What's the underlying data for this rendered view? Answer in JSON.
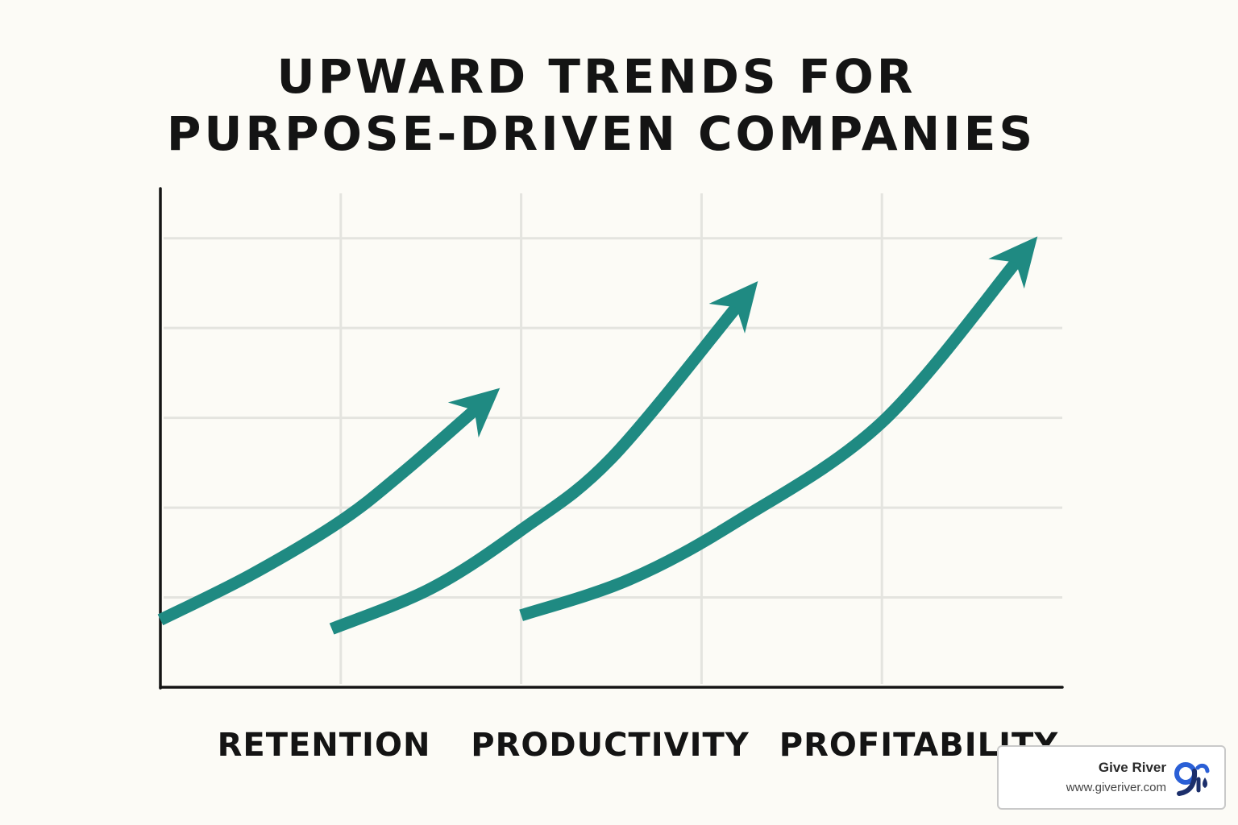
{
  "colors": {
    "background": "#fcfbf6",
    "arrow": "#1f8a82",
    "axis": "#141414",
    "grid": "#e4e4df",
    "logo_blue": "#2a5fd6",
    "logo_navy": "#1c2f6b"
  },
  "chart_data": {
    "type": "line",
    "title_lines": [
      "UPWARD TRENDS FOR",
      "PURPOSE-DRIVEN COMPANIES"
    ],
    "xlabel": "",
    "ylabel": "",
    "grid": true,
    "axis_ticks_labeled": false,
    "categories": [
      "RETENTION",
      "PRODUCTIVITY",
      "PROFITABILITY"
    ],
    "x_range": [
      0,
      5
    ],
    "y_range": [
      0,
      5.5
    ],
    "series": [
      {
        "values": [
          [
            0,
            0.75
          ],
          [
            0.5,
            1.25
          ],
          [
            1.0,
            1.85
          ],
          [
            1.35,
            2.4
          ],
          [
            1.75,
            3.1
          ]
        ]
      },
      {
        "values": [
          [
            0.95,
            0.65
          ],
          [
            1.5,
            1.1
          ],
          [
            2.0,
            1.75
          ],
          [
            2.5,
            2.55
          ],
          [
            3.2,
            4.25
          ]
        ]
      },
      {
        "values": [
          [
            2.0,
            0.8
          ],
          [
            2.6,
            1.2
          ],
          [
            3.2,
            1.85
          ],
          [
            4.0,
            2.95
          ],
          [
            4.75,
            4.75
          ]
        ]
      }
    ],
    "style": "hand-drawn arrows"
  },
  "badge": {
    "name": "Give River",
    "url": "www.giveriver.com",
    "logo_icon": "give-river-logo"
  }
}
